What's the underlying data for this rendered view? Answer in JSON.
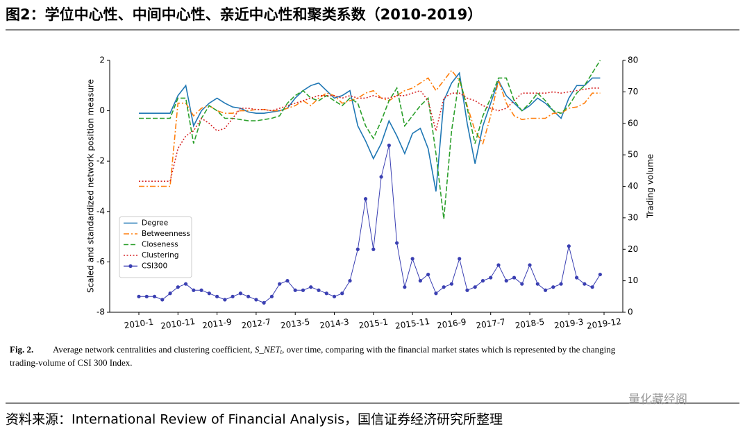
{
  "header": {
    "title": "图2：学位中心性、中间中心性、亲近中心性和聚类系数（2010-2019）"
  },
  "chart_data": {
    "type": "line",
    "ylabel": "Scaled and standardized network position measure",
    "y2label": "Trading volume",
    "x": [
      "2010-1",
      "2010-3",
      "2010-5",
      "2010-7",
      "2010-9",
      "2010-11",
      "2011-1",
      "2011-3",
      "2011-5",
      "2011-7",
      "2011-9",
      "2011-11",
      "2012-1",
      "2012-3",
      "2012-5",
      "2012-7",
      "2012-9",
      "2012-11",
      "2013-1",
      "2013-3",
      "2013-5",
      "2013-7",
      "2013-9",
      "2013-11",
      "2014-1",
      "2014-3",
      "2014-5",
      "2014-7",
      "2014-9",
      "2014-11",
      "2015-1",
      "2015-3",
      "2015-5",
      "2015-7",
      "2015-9",
      "2015-11",
      "2016-1",
      "2016-3",
      "2016-5",
      "2016-7",
      "2016-9",
      "2016-11",
      "2017-1",
      "2017-3",
      "2017-5",
      "2017-7",
      "2017-9",
      "2017-11",
      "2018-1",
      "2018-3",
      "2018-5",
      "2018-7",
      "2018-9",
      "2018-11",
      "2019-1",
      "2019-3",
      "2019-5",
      "2019-7",
      "2019-9",
      "2019-11"
    ],
    "xticks": [
      "2010-1",
      "2010-11",
      "2011-9",
      "2012-7",
      "2013-5",
      "2014-3",
      "2015-1",
      "2015-11",
      "2016-9",
      "2017-7",
      "2018-5",
      "2019-3",
      "2019-12"
    ],
    "ylim": [
      -8,
      2
    ],
    "yticks": [
      -8,
      -6,
      -4,
      -2,
      0,
      2
    ],
    "y2lim": [
      0,
      80
    ],
    "y2ticks": [
      0,
      10,
      20,
      30,
      40,
      50,
      60,
      70,
      80
    ],
    "legend": "lower left",
    "series": [
      {
        "name": "Degree",
        "color": "#1f77b4",
        "style": "solid",
        "values": [
          -0.1,
          -0.1,
          -0.1,
          -0.1,
          -0.1,
          0.6,
          1.0,
          -0.6,
          0.0,
          0.3,
          0.5,
          0.3,
          0.15,
          0.1,
          -0.05,
          -0.1,
          -0.1,
          -0.05,
          0,
          0.1,
          0.5,
          0.8,
          1.0,
          1.1,
          0.8,
          0.5,
          0.6,
          0.8,
          -0.6,
          -1.2,
          -1.9,
          -1.3,
          -0.4,
          -1.0,
          -1.7,
          -0.9,
          -0.7,
          -1.5,
          -3.2,
          0.4,
          1.1,
          1.5,
          -0.5,
          -2.1,
          -0.6,
          0.3,
          1.2,
          0.6,
          0.3,
          0.0,
          0.2,
          0.5,
          0.3,
          0.0,
          -0.3,
          0.5,
          1.0,
          1.0,
          1.3,
          1.3
        ]
      },
      {
        "name": "Betweenness",
        "color": "#ff7f0e",
        "style": "dashdot",
        "values": [
          -3.0,
          -3.0,
          -3.0,
          -3.0,
          -3.0,
          0.3,
          0.3,
          -0.2,
          0.1,
          0.2,
          0.0,
          -0.1,
          -0.1,
          0.0,
          0.0,
          0.05,
          0.05,
          0.0,
          0.0,
          0.1,
          0.2,
          0.4,
          0.2,
          0.5,
          0.7,
          0.6,
          0.3,
          0.4,
          0.5,
          0.7,
          0.8,
          0.5,
          0.4,
          0.6,
          0.8,
          0.9,
          1.1,
          1.3,
          0.8,
          1.2,
          1.6,
          1.2,
          0.2,
          -0.8,
          -1.3,
          -0.2,
          1.2,
          0.3,
          -0.2,
          -0.35,
          -0.3,
          -0.3,
          -0.3,
          -0.1,
          -0.1,
          0.1,
          0.15,
          0.3,
          0.7,
          0.7
        ]
      },
      {
        "name": "Closeness",
        "color": "#2ca02c",
        "style": "dashed",
        "values": [
          -0.3,
          -0.3,
          -0.3,
          -0.3,
          -0.3,
          0.5,
          0.5,
          -1.3,
          -0.3,
          0.2,
          0.0,
          -0.3,
          -0.3,
          -0.35,
          -0.4,
          -0.4,
          -0.35,
          -0.3,
          -0.2,
          0.3,
          0.6,
          0.8,
          0.5,
          0.4,
          0.6,
          0.4,
          0.2,
          0.5,
          0.3,
          -0.6,
          -1.1,
          -0.4,
          0.4,
          0.9,
          -0.6,
          -0.2,
          0.2,
          0.5,
          -1.7,
          -4.3,
          -0.8,
          1.3,
          0.1,
          -1.3,
          -0.2,
          0.5,
          1.3,
          1.3,
          0.4,
          0.0,
          0.3,
          0.7,
          0.4,
          0.0,
          -0.1,
          0.2,
          0.7,
          1.0,
          1.5,
          2.0
        ]
      },
      {
        "name": "Clustering",
        "color": "#d62728",
        "style": "dotted",
        "values": [
          -2.8,
          -2.8,
          -2.8,
          -2.8,
          -2.8,
          -1.5,
          -1.0,
          -0.8,
          -0.3,
          -0.5,
          -0.8,
          -0.7,
          -0.3,
          0.1,
          0.1,
          0.05,
          0.05,
          0.0,
          0.1,
          0.2,
          0.3,
          0.4,
          0.5,
          0.6,
          0.6,
          0.6,
          0.5,
          0.6,
          0.5,
          0.5,
          0.6,
          0.5,
          0.5,
          0.6,
          0.6,
          0.7,
          0.8,
          0.4,
          -0.8,
          0.5,
          0.7,
          0.7,
          0.5,
          0.4,
          0.2,
          0.1,
          0.0,
          0.1,
          0.4,
          0.7,
          0.7,
          0.7,
          0.7,
          0.75,
          0.7,
          0.75,
          0.8,
          0.85,
          0.9,
          0.9
        ]
      },
      {
        "name": "CSI300",
        "color": "#3a3fb2",
        "style": "solid",
        "marker": "o",
        "axis": "y2",
        "values": [
          5,
          5,
          5,
          4,
          6,
          8,
          9,
          7,
          7,
          6,
          5,
          4,
          5,
          6,
          5,
          4,
          3,
          5,
          9,
          10,
          7,
          7,
          8,
          7,
          6,
          5,
          6,
          10,
          20,
          36,
          20,
          43,
          53,
          22,
          8,
          17,
          10,
          12,
          6,
          8,
          9,
          17,
          7,
          8,
          10,
          11,
          15,
          10,
          11,
          9,
          15,
          9,
          7,
          8,
          9,
          21,
          11,
          9,
          8,
          12
        ]
      }
    ]
  },
  "caption": {
    "label": "Fig. 2.",
    "before": "Average network centralities and clustering coefficient,",
    "symbol": "S_NET",
    "subscript": "t",
    "after": ", over time, comparing with the financial market states which is represented by the changing",
    "line2": "trading-volume of CSI 300 Index."
  },
  "watermark": "量化藏经阁",
  "source": "资料来源：International Review of Financial Analysis，国信证券经济研究所整理"
}
